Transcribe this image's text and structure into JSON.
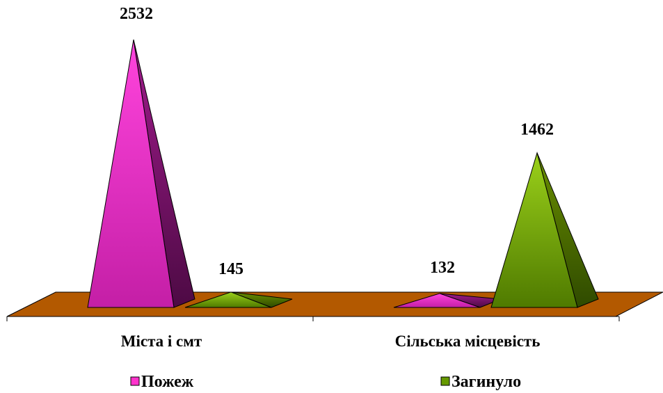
{
  "chart_data": {
    "type": "bar",
    "style": "3d-pyramid",
    "categories": [
      "Міста і смт",
      "Сільська місцевість"
    ],
    "series": [
      {
        "name": "Пожеж",
        "values": [
          2532,
          132
        ],
        "color": "#ff33cc"
      },
      {
        "name": "Загинуло",
        "values": [
          145,
          1462
        ],
        "color": "#669900"
      }
    ],
    "legend_position": "bottom",
    "floor_color": "#b35900",
    "grid": false
  }
}
